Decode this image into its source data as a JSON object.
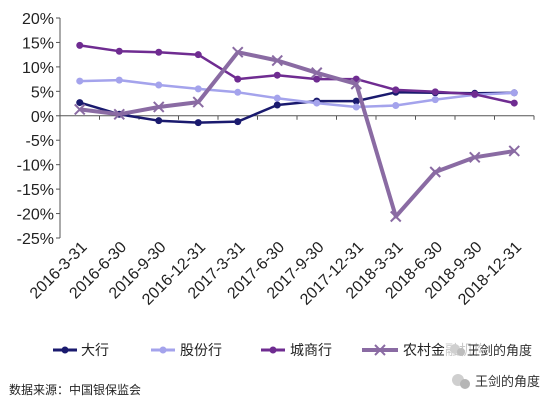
{
  "chart_data": {
    "type": "line",
    "categories": [
      "2016-3-31",
      "2016-6-30",
      "2016-9-30",
      "2016-12-31",
      "2017-3-31",
      "2017-6-30",
      "2017-9-30",
      "2017-12-31",
      "2018-3-31",
      "2018-6-30",
      "2018-9-30",
      "2018-12-31"
    ],
    "y_tick_labels": [
      "20%",
      "15%",
      "10%",
      "5%",
      "0%",
      "-5%",
      "-10%",
      "-15%",
      "-20%",
      "-25%"
    ],
    "ylim": [
      -25,
      20
    ],
    "grid": false,
    "legend_position": "bottom",
    "series": [
      {
        "name": "大行",
        "color": "#1a1a6e",
        "marker": "circle",
        "values": [
          2.7,
          0.3,
          -1.0,
          -1.4,
          -1.2,
          2.2,
          3.0,
          3.0,
          4.8,
          4.7,
          4.6,
          4.7
        ]
      },
      {
        "name": "股份行",
        "color": "#a4a3ec",
        "marker": "circle",
        "values": [
          7.1,
          7.3,
          6.3,
          5.5,
          4.8,
          3.6,
          2.6,
          1.8,
          2.1,
          3.3,
          4.3,
          4.7
        ]
      },
      {
        "name": "城商行",
        "color": "#6f2c91",
        "marker": "circle",
        "values": [
          14.4,
          13.2,
          13.0,
          12.5,
          7.5,
          8.3,
          7.5,
          7.5,
          5.3,
          4.9,
          4.4,
          2.6
        ]
      },
      {
        "name": "农村金融机构",
        "color": "#8a6ba3",
        "marker": "x",
        "values": [
          1.3,
          0.3,
          1.8,
          2.8,
          13.0,
          11.3,
          8.8,
          6.5,
          -20.6,
          -11.5,
          -8.5,
          -7.2
        ]
      }
    ],
    "source": "数据来源：中国银保监会"
  },
  "watermarks": {
    "overlay": "王剑的角度",
    "corner": "王剑的角度",
    "icon": "wechat-icon"
  }
}
